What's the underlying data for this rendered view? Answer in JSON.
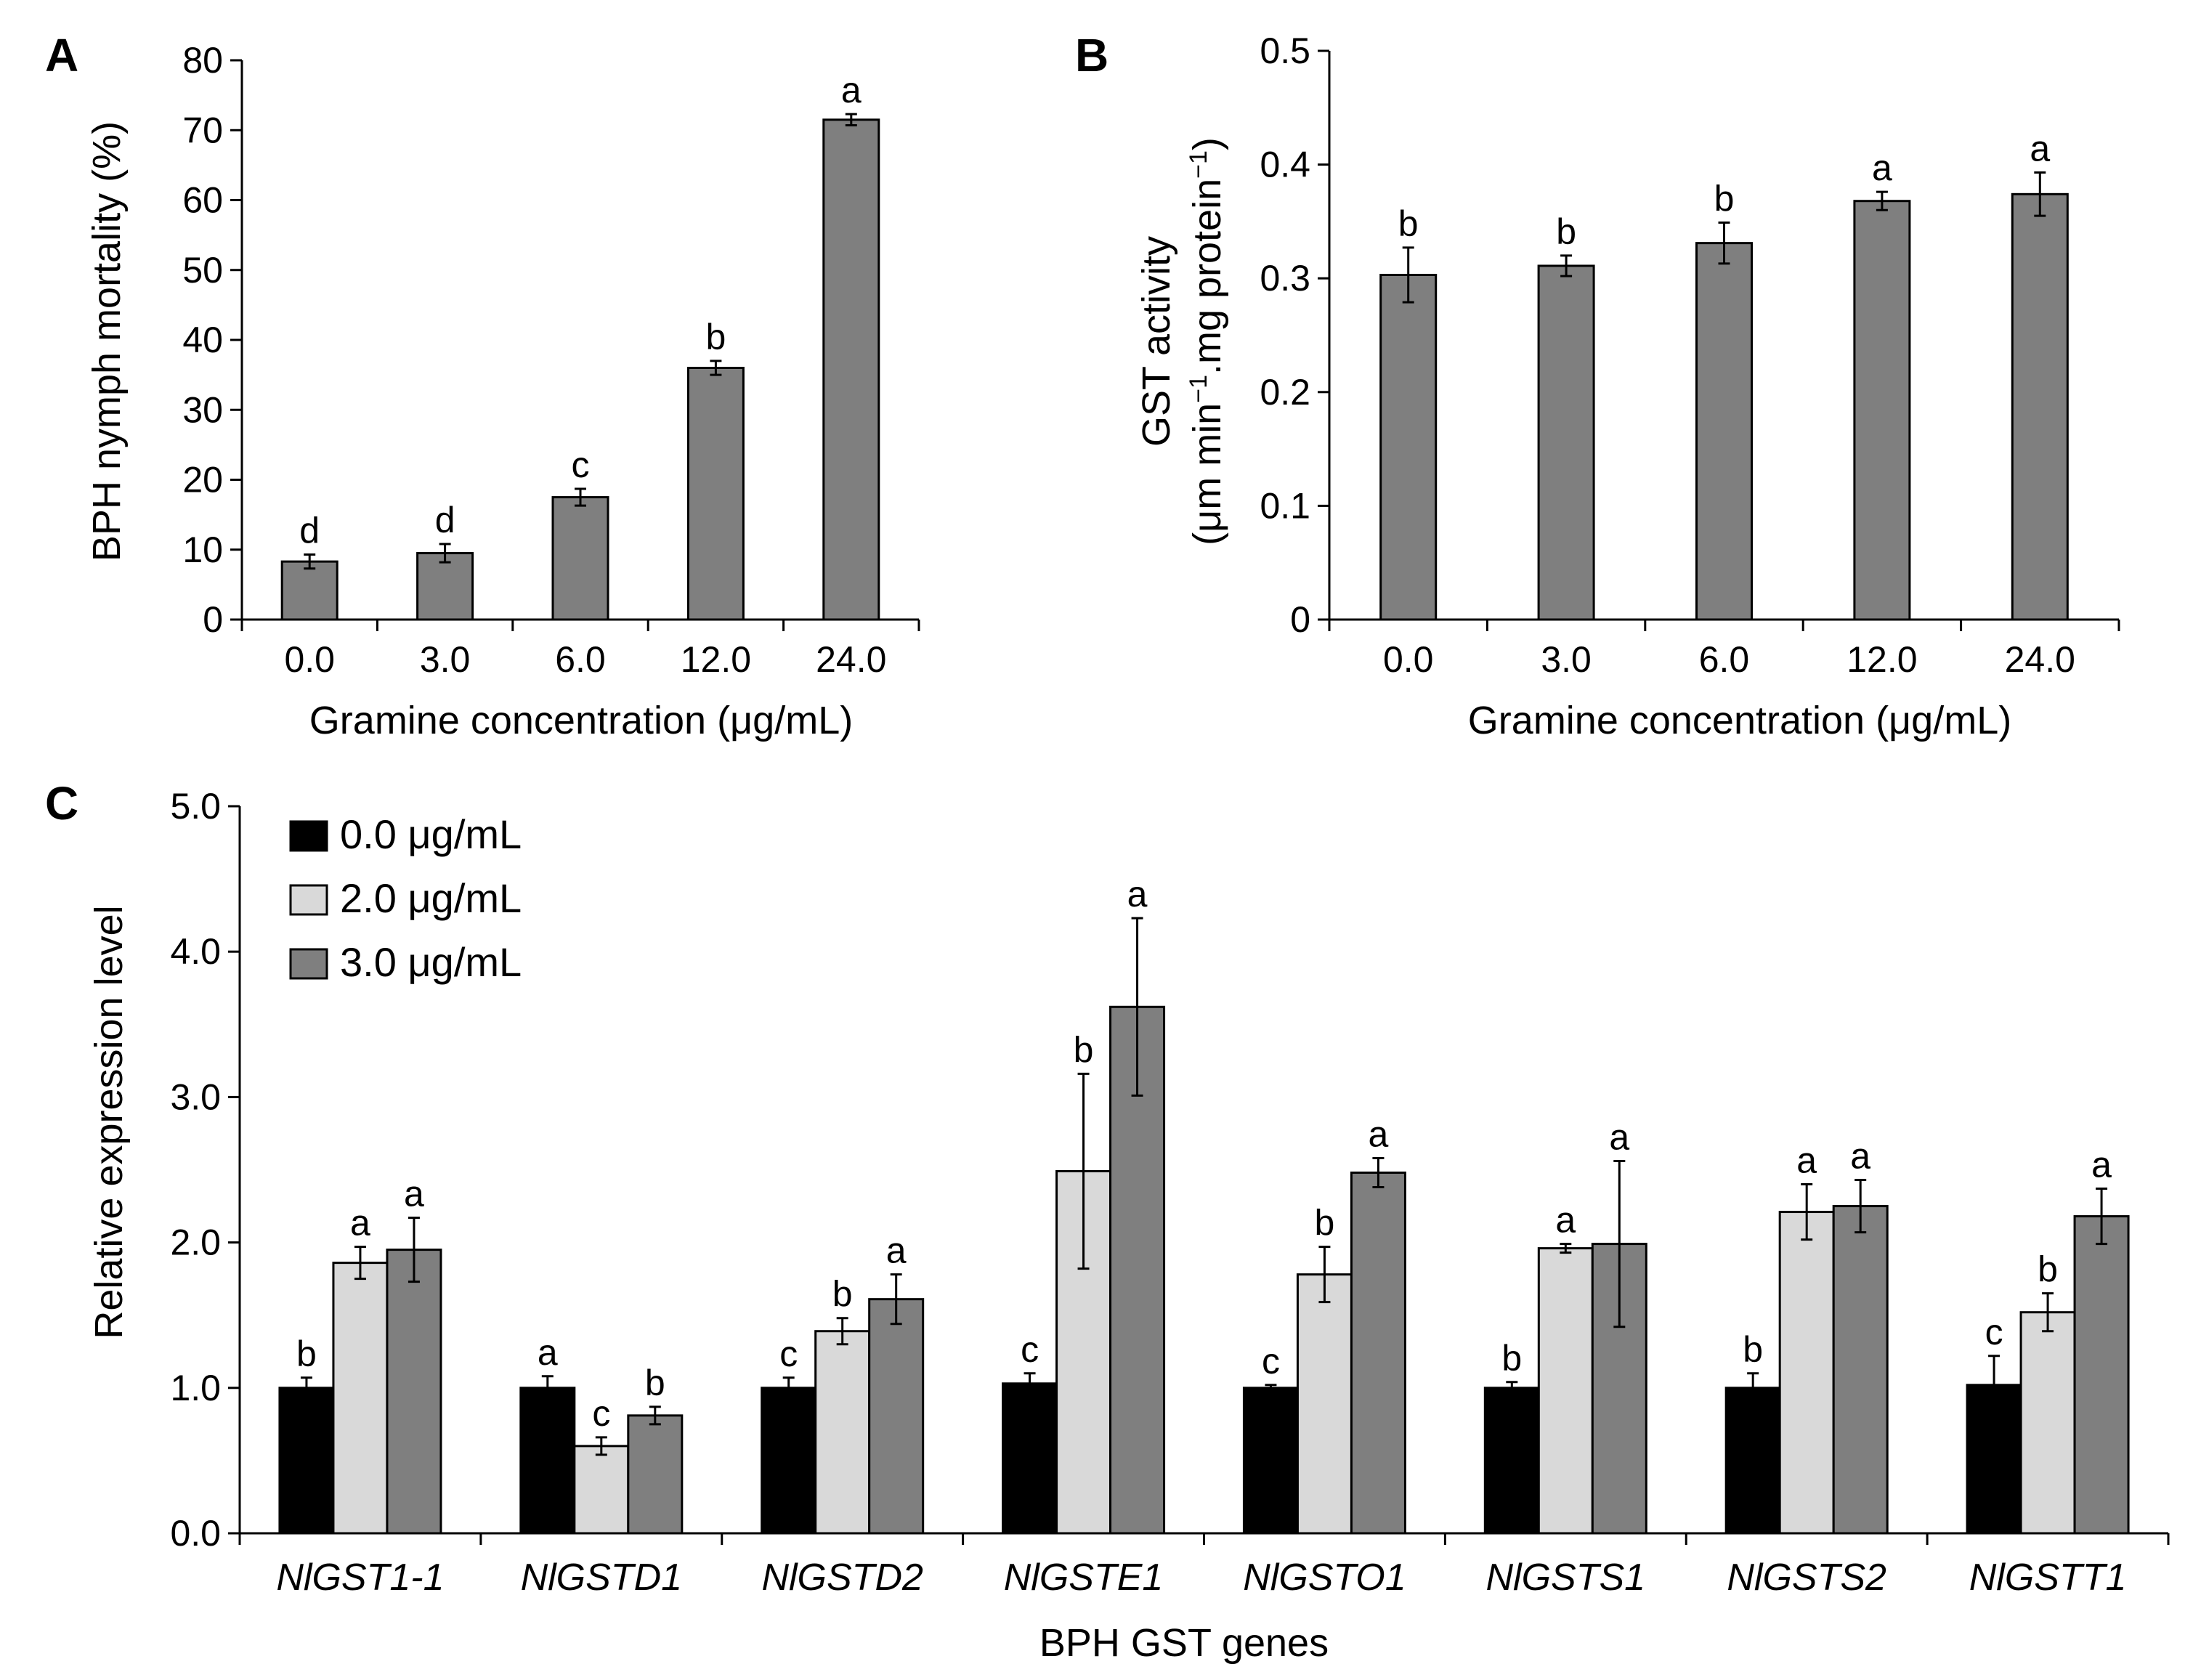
{
  "panels": {
    "A": {
      "label": "A",
      "chart_data": {
        "type": "bar",
        "title": "",
        "xlabel": "Gramine concentration (μg/mL)",
        "ylabel": "BPH nymph mortality (%)",
        "categories": [
          "0.0",
          "3.0",
          "6.0",
          "12.0",
          "24.0"
        ],
        "values": [
          8.3,
          9.5,
          17.5,
          36.0,
          71.5
        ],
        "errors": [
          1.0,
          1.3,
          1.2,
          1.0,
          0.8
        ],
        "significance": [
          "d",
          "d",
          "c",
          "b",
          "a"
        ],
        "ylim": [
          0,
          80
        ],
        "yticks": [
          "0",
          "10",
          "20",
          "30",
          "40",
          "50",
          "60",
          "70",
          "80"
        ],
        "yticks_values": [
          0,
          10,
          20,
          30,
          40,
          50,
          60,
          70,
          80
        ],
        "color": "#7f7f7f"
      }
    },
    "B": {
      "label": "B",
      "chart_data": {
        "type": "bar",
        "title": "",
        "xlabel": "Gramine concentration (μg/mL)",
        "ylabel_line1": "GST activity",
        "ylabel_line2_a": "(μm min",
        "ylabel_line2_sup1": "−1",
        "ylabel_line2_b": ".mg protein",
        "ylabel_line2_sup2": "−1",
        "ylabel_line2_c": ")",
        "categories": [
          "0.0",
          "3.0",
          "6.0",
          "12.0",
          "24.0"
        ],
        "values": [
          0.303,
          0.311,
          0.331,
          0.368,
          0.374
        ],
        "errors": [
          0.024,
          0.009,
          0.018,
          0.008,
          0.019
        ],
        "significance": [
          "b",
          "b",
          "b",
          "a",
          "a"
        ],
        "ylim": [
          0,
          0.5
        ],
        "yticks": [
          "0",
          "0.1",
          "0.2",
          "0.3",
          "0.4",
          "0.5"
        ],
        "yticks_values": [
          0,
          0.1,
          0.2,
          0.3,
          0.4,
          0.5
        ],
        "color": "#7f7f7f"
      }
    },
    "C": {
      "label": "C",
      "chart_data": {
        "type": "bar",
        "title": "",
        "xlabel": "BPH GST genes",
        "ylabel": "Relative expression level",
        "categories": [
          "NlGST1-1",
          "NlGSTD1",
          "NlGSTD2",
          "NlGSTE1",
          "NlGSTO1",
          "NlGSTS1",
          "NlGSTS2",
          "NlGSTT1"
        ],
        "ylim": [
          0,
          5
        ],
        "yticks": [
          "0.0",
          "1.0",
          "2.0",
          "3.0",
          "4.0",
          "5.0"
        ],
        "yticks_values": [
          0,
          1,
          2,
          3,
          4,
          5
        ],
        "series": [
          {
            "name": "0.0 μg/mL",
            "color": "#000000",
            "values": [
              1.0,
              1.0,
              1.0,
              1.03,
              1.0,
              1.0,
              1.0,
              1.02
            ],
            "errors": [
              0.07,
              0.08,
              0.07,
              0.07,
              0.02,
              0.04,
              0.1,
              0.2
            ],
            "significance": [
              "b",
              "a",
              "c",
              "c",
              "c",
              "b",
              "b",
              "c"
            ]
          },
          {
            "name": "2.0 μg/mL",
            "color": "#d9d9d9",
            "values": [
              1.86,
              0.6,
              1.39,
              2.49,
              1.78,
              1.96,
              2.21,
              1.52
            ],
            "errors": [
              0.11,
              0.06,
              0.09,
              0.67,
              0.19,
              0.03,
              0.19,
              0.13
            ],
            "significance": [
              "a",
              "c",
              "b",
              "b",
              "b",
              "a",
              "a",
              "b"
            ]
          },
          {
            "name": "3.0 μg/mL",
            "color": "#7f7f7f",
            "values": [
              1.95,
              0.81,
              1.61,
              3.62,
              2.48,
              1.99,
              2.25,
              2.18
            ],
            "errors": [
              0.22,
              0.06,
              0.17,
              0.61,
              0.1,
              0.57,
              0.18,
              0.19
            ],
            "significance": [
              "a",
              "b",
              "a",
              "a",
              "a",
              "a",
              "a",
              "a"
            ]
          }
        ],
        "legend": "top-left"
      }
    }
  }
}
